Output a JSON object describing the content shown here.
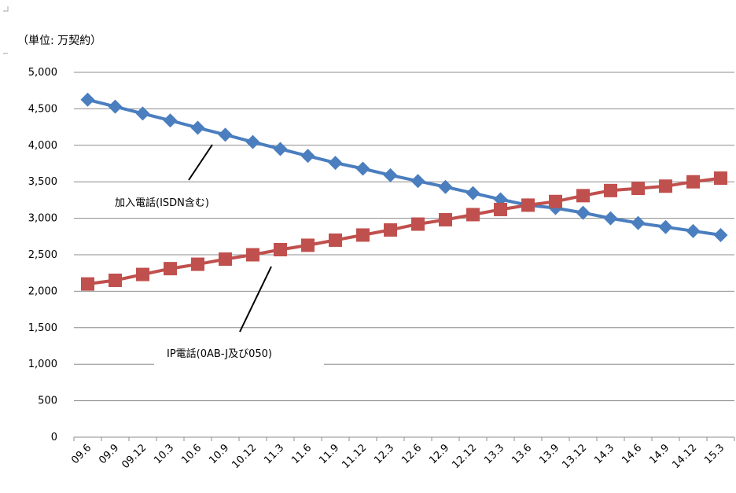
{
  "chart_data": {
    "type": "line",
    "unit_label": "（単位: 万契約）",
    "categories": [
      "09.6",
      "09.9",
      "09.12",
      "10.3",
      "10.6",
      "10.9",
      "10.12",
      "11.3",
      "11.6",
      "11.9",
      "11.12",
      "12.3",
      "12.6",
      "12.9",
      "12.12",
      "13.3",
      "13.6",
      "13.9",
      "13.12",
      "14.3",
      "14.6",
      "14.9",
      "14.12",
      "15.3"
    ],
    "ylim": [
      0,
      5000
    ],
    "y_ticks": [
      0,
      500,
      1000,
      1500,
      2000,
      2500,
      3000,
      3500,
      4000,
      4500,
      5000
    ],
    "y_tick_labels": [
      "0",
      "500",
      "1,000",
      "1,500",
      "2,000",
      "2,500",
      "3,000",
      "3,500",
      "4,000",
      "4,500",
      "5,000"
    ],
    "grid": "horizontal",
    "series": [
      {
        "name": "加入電話(ISDN含む)",
        "color": "#4a7ebf",
        "marker": "diamond",
        "values": [
          4625,
          4530,
          4435,
          4340,
          4240,
          4145,
          4045,
          3950,
          3855,
          3760,
          3680,
          3590,
          3510,
          3430,
          3345,
          3260,
          3180,
          3140,
          3075,
          3000,
          2935,
          2880,
          2825,
          2770
        ]
      },
      {
        "name": "IP電話(0AB-J及び050)",
        "color": "#c0504d",
        "marker": "square",
        "values": [
          2100,
          2150,
          2230,
          2310,
          2370,
          2440,
          2500,
          2570,
          2630,
          2700,
          2770,
          2840,
          2920,
          2980,
          3050,
          3120,
          3180,
          3230,
          3310,
          3380,
          3410,
          3440,
          3500,
          3550
        ]
      }
    ]
  }
}
